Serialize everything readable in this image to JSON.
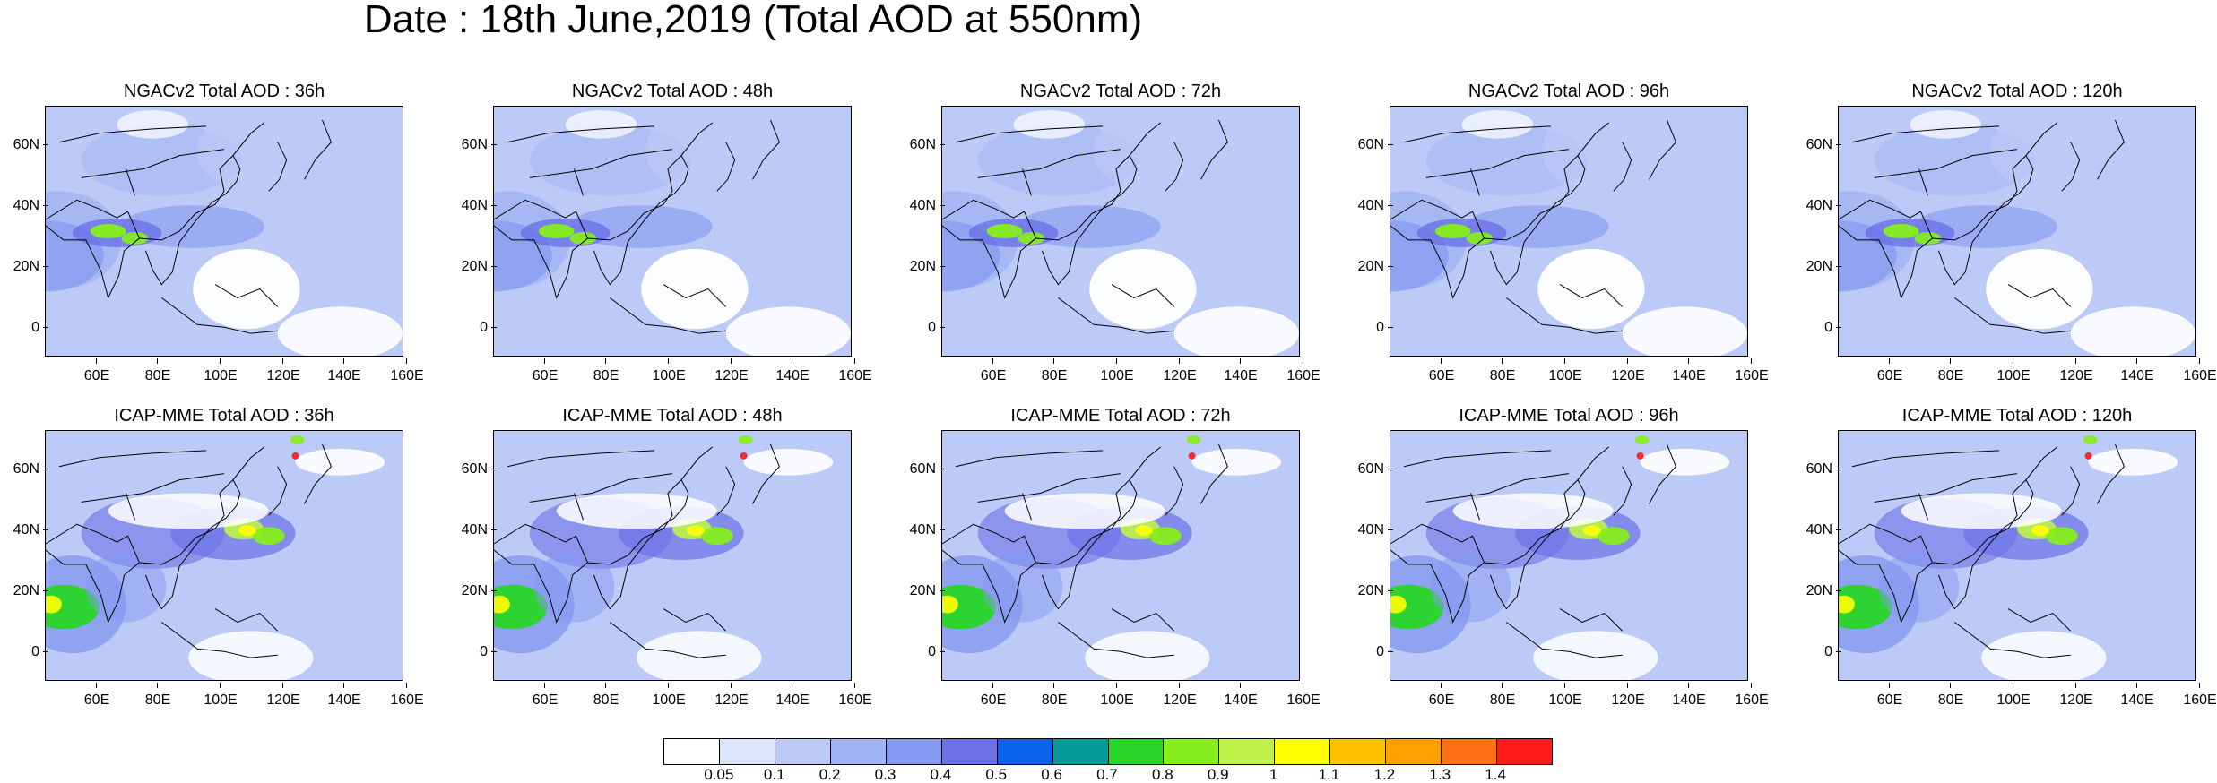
{
  "figure_title": "Date : 18th June,2019 (Total AOD at 550nm)",
  "panels": [
    {
      "title": "NGACv2 Total AOD : 36h",
      "model": "NGACv2",
      "lead": "36h"
    },
    {
      "title": "NGACv2 Total AOD : 48h",
      "model": "NGACv2",
      "lead": "48h"
    },
    {
      "title": "NGACv2 Total AOD : 72h",
      "model": "NGACv2",
      "lead": "72h"
    },
    {
      "title": "NGACv2 Total AOD : 96h",
      "model": "NGACv2",
      "lead": "96h"
    },
    {
      "title": "NGACv2 Total AOD : 120h",
      "model": "NGACv2",
      "lead": "120h"
    },
    {
      "title": "ICAP-MME Total AOD : 36h",
      "model": "ICAP-MME",
      "lead": "36h"
    },
    {
      "title": "ICAP-MME Total AOD : 48h",
      "model": "ICAP-MME",
      "lead": "48h"
    },
    {
      "title": "ICAP-MME Total AOD : 72h",
      "model": "ICAP-MME",
      "lead": "72h"
    },
    {
      "title": "ICAP-MME Total AOD : 96h",
      "model": "ICAP-MME",
      "lead": "96h"
    },
    {
      "title": "ICAP-MME Total AOD : 120h",
      "model": "ICAP-MME",
      "lead": "120h"
    }
  ],
  "lat_ticks": [
    "60N",
    "40N",
    "20N",
    "0"
  ],
  "lon_ticks": [
    "60E",
    "80E",
    "100E",
    "120E",
    "140E",
    "160E"
  ],
  "colorbar": {
    "labels": [
      "0.05",
      "0.1",
      "0.2",
      "0.3",
      "0.4",
      "0.5",
      "0.6",
      "0.7",
      "0.8",
      "0.9",
      "1",
      "1.1",
      "1.2",
      "1.3",
      "1.4"
    ],
    "colors": [
      "#ffffff",
      "#dde4fb",
      "#bccaf8",
      "#a0b3f3",
      "#8498ef",
      "#6a72e6",
      "#0b62ee",
      "#069a9a",
      "#27d627",
      "#86ee1a",
      "#bdf24a",
      "#ffff00",
      "#ffc000",
      "#ff9f00",
      "#ff7014",
      "#ff1a1a"
    ]
  }
}
